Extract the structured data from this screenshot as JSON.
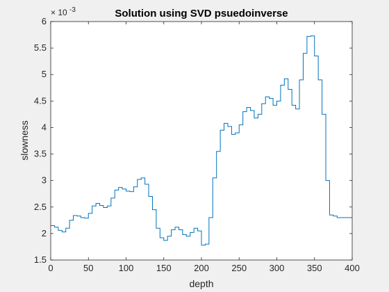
{
  "chart_data": {
    "type": "line",
    "title": "Solution using SVD psuedoinverse",
    "xlabel": "depth",
    "ylabel": "slowness",
    "xlim": [
      0,
      400
    ],
    "ylim": [
      1.5,
      6
    ],
    "y_exponent_label": "× 10",
    "y_exponent_power": "-3",
    "grid": false,
    "line_color": "#0072bd",
    "xticks": [
      0,
      50,
      100,
      150,
      200,
      250,
      300,
      350,
      400
    ],
    "yticks": [
      1.5,
      2,
      2.5,
      3,
      3.5,
      4,
      4.5,
      5,
      5.5,
      6
    ],
    "series": [
      {
        "x": [
          0,
          5,
          10,
          15,
          20,
          25,
          30,
          35,
          40,
          45,
          50,
          55,
          60,
          65,
          70,
          75,
          80,
          85,
          90,
          95,
          100,
          105,
          110,
          115,
          120,
          125,
          130,
          135,
          140,
          145,
          150,
          155,
          160,
          165,
          170,
          175,
          180,
          185,
          190,
          195,
          200,
          205,
          210,
          215,
          220,
          225,
          230,
          235,
          240,
          245,
          250,
          255,
          260,
          265,
          270,
          275,
          280,
          285,
          290,
          295,
          300,
          305,
          310,
          315,
          320,
          325,
          330,
          335,
          340,
          345,
          350,
          355,
          360,
          365,
          370,
          375,
          380,
          383,
          386,
          390,
          393,
          396,
          398,
          400
        ],
        "y": [
          2.15,
          2.12,
          2.06,
          2.03,
          2.1,
          2.25,
          2.34,
          2.33,
          2.3,
          2.29,
          2.38,
          2.52,
          2.57,
          2.53,
          2.49,
          2.52,
          2.67,
          2.82,
          2.87,
          2.84,
          2.8,
          2.79,
          2.88,
          3.02,
          3.05,
          2.93,
          2.7,
          2.45,
          2.1,
          1.92,
          1.87,
          1.95,
          2.07,
          2.12,
          2.07,
          1.98,
          1.95,
          2.02,
          2.1,
          2.05,
          1.78,
          1.8,
          2.3,
          3.05,
          3.55,
          3.95,
          4.08,
          4.02,
          3.87,
          3.9,
          4.05,
          4.3,
          4.38,
          4.32,
          4.18,
          4.25,
          4.45,
          4.58,
          4.55,
          4.42,
          4.5,
          4.8,
          4.92,
          4.72,
          4.42,
          4.35,
          4.9,
          5.4,
          5.72,
          5.73,
          5.35,
          4.9,
          4.25,
          3.0,
          2.35,
          2.33,
          2.3,
          2.3,
          2.3,
          2.3,
          2.3,
          2.3,
          2.3,
          2.3
        ]
      }
    ]
  }
}
